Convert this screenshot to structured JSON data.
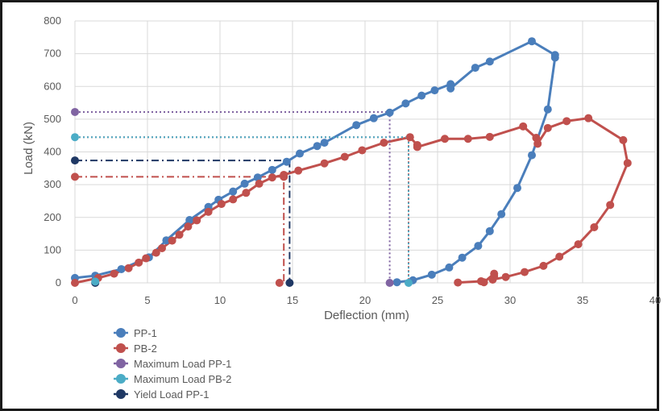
{
  "chart_data": {
    "type": "scatter",
    "xlabel": "Deflection (mm)",
    "ylabel": "Load (kN)",
    "xlim": [
      0,
      40
    ],
    "ylim": [
      0,
      800
    ],
    "xticks": [
      0,
      5,
      10,
      15,
      20,
      25,
      30,
      35,
      40
    ],
    "yticks": [
      0,
      100,
      200,
      300,
      400,
      500,
      600,
      700,
      800
    ],
    "x_tick_labels": [
      "0",
      "5",
      "10",
      "15",
      "20",
      "25",
      "30",
      "35",
      "40"
    ],
    "y_tick_labels": [
      "0",
      "100",
      "200",
      "300",
      "400",
      "500",
      "600",
      "700",
      "800"
    ],
    "grid": true,
    "legend_position": "bottom-left",
    "series": [
      {
        "name": "PP-1",
        "color": "#4a7ebb",
        "marker": "circle",
        "line": "solid",
        "points": [
          [
            0,
            15
          ],
          [
            1.4,
            22
          ],
          [
            3.2,
            42
          ],
          [
            5.1,
            78
          ],
          [
            6.3,
            130
          ],
          [
            7.9,
            192
          ],
          [
            9.2,
            232
          ],
          [
            9.9,
            254
          ],
          [
            10.9,
            279
          ],
          [
            11.7,
            303
          ],
          [
            12.6,
            322
          ],
          [
            13.6,
            345
          ],
          [
            14.6,
            370
          ],
          [
            15.5,
            395
          ],
          [
            16.7,
            418
          ],
          [
            17.2,
            428
          ],
          [
            19.4,
            482
          ],
          [
            20.6,
            503
          ],
          [
            21.7,
            520
          ],
          [
            22.8,
            548
          ],
          [
            23.9,
            572
          ],
          [
            24.8,
            588
          ],
          [
            25.9,
            607
          ],
          [
            25.9,
            594
          ],
          [
            27.6,
            657
          ],
          [
            28.6,
            676
          ],
          [
            31.5,
            738
          ],
          [
            33.1,
            696
          ],
          [
            33.1,
            688
          ],
          [
            32.6,
            530
          ],
          [
            31.5,
            390
          ],
          [
            30.5,
            290
          ],
          [
            29.4,
            210
          ],
          [
            28.6,
            158
          ],
          [
            27.8,
            113
          ],
          [
            26.7,
            77
          ],
          [
            25.8,
            47
          ],
          [
            24.6,
            25
          ],
          [
            23.3,
            8
          ],
          [
            22.2,
            2
          ]
        ]
      },
      {
        "name": "PB-2",
        "color": "#c0504d",
        "marker": "circle",
        "line": "solid",
        "points": [
          [
            0,
            0
          ],
          [
            1.6,
            15
          ],
          [
            2.7,
            28
          ],
          [
            3.7,
            45
          ],
          [
            4.4,
            62
          ],
          [
            4.9,
            75
          ],
          [
            5.6,
            92
          ],
          [
            6.0,
            106
          ],
          [
            6.7,
            129
          ],
          [
            7.2,
            147
          ],
          [
            7.8,
            172
          ],
          [
            8.4,
            191
          ],
          [
            9.2,
            217
          ],
          [
            10.1,
            241
          ],
          [
            10.9,
            255
          ],
          [
            11.8,
            275
          ],
          [
            12.7,
            303
          ],
          [
            13.6,
            322
          ],
          [
            14.4,
            330
          ],
          [
            15.4,
            343
          ],
          [
            17.2,
            365
          ],
          [
            18.6,
            385
          ],
          [
            19.8,
            405
          ],
          [
            21.3,
            428
          ],
          [
            23.1,
            445
          ],
          [
            23.6,
            421
          ],
          [
            23.6,
            415
          ],
          [
            25.5,
            440
          ],
          [
            27.1,
            440
          ],
          [
            28.6,
            446
          ],
          [
            30.9,
            478
          ],
          [
            31.8,
            443
          ],
          [
            31.9,
            425
          ],
          [
            32.6,
            473
          ],
          [
            33.9,
            494
          ],
          [
            35.4,
            503
          ],
          [
            37.8,
            436
          ],
          [
            38.1,
            366
          ],
          [
            36.9,
            238
          ],
          [
            35.8,
            170
          ],
          [
            34.7,
            118
          ],
          [
            33.4,
            80
          ],
          [
            32.3,
            52
          ],
          [
            31.0,
            33
          ],
          [
            29.7,
            18
          ],
          [
            28.8,
            10
          ],
          [
            28.9,
            20
          ],
          [
            28.9,
            28
          ],
          [
            28.2,
            2
          ],
          [
            28.0,
            5
          ],
          [
            26.4,
            1
          ]
        ]
      },
      {
        "name": "Maximum Load PP-1",
        "color": "#8064a2",
        "marker": "circle",
        "line": "dotted",
        "points": [
          [
            0,
            522
          ],
          [
            21.7,
            522
          ],
          [
            21.7,
            0
          ]
        ]
      },
      {
        "name": "Maximum Load PB-2",
        "color": "#4bacc6",
        "marker": "circle",
        "line": "dotted",
        "points": [
          [
            0,
            445
          ],
          [
            23.0,
            445
          ],
          [
            23.0,
            0
          ]
        ]
      },
      {
        "name": "Yield Load PP-1",
        "color": "#1f3864",
        "marker": "circle",
        "line": "dashdot",
        "points": [
          [
            0,
            374
          ],
          [
            14.8,
            374
          ],
          [
            14.8,
            0
          ]
        ]
      }
    ],
    "extra_markers": [
      {
        "color": "#1f3864",
        "points": [
          [
            1.4,
            0
          ]
        ]
      },
      {
        "color": "#4bacc6",
        "points": [
          [
            1.4,
            4
          ]
        ]
      }
    ],
    "extra_lines": [
      {
        "color": "#c0504d",
        "line": "dashdot",
        "points": [
          [
            0,
            324
          ],
          [
            14.4,
            324
          ],
          [
            14.4,
            0
          ]
        ]
      },
      {
        "color": "#c0504d",
        "line": "dotted",
        "points": [
          [
            0,
            445
          ],
          [
            23.0,
            445
          ]
        ]
      },
      {
        "color": "#c0504d",
        "line": "dotted",
        "points": [
          [
            23.0,
            445
          ],
          [
            23.0,
            0
          ]
        ]
      }
    ],
    "extra_endpoint_markers": [
      {
        "color": "#c0504d",
        "points": [
          [
            0,
            324
          ],
          [
            14.4,
            324
          ],
          [
            14.1,
            0
          ]
        ]
      }
    ]
  }
}
